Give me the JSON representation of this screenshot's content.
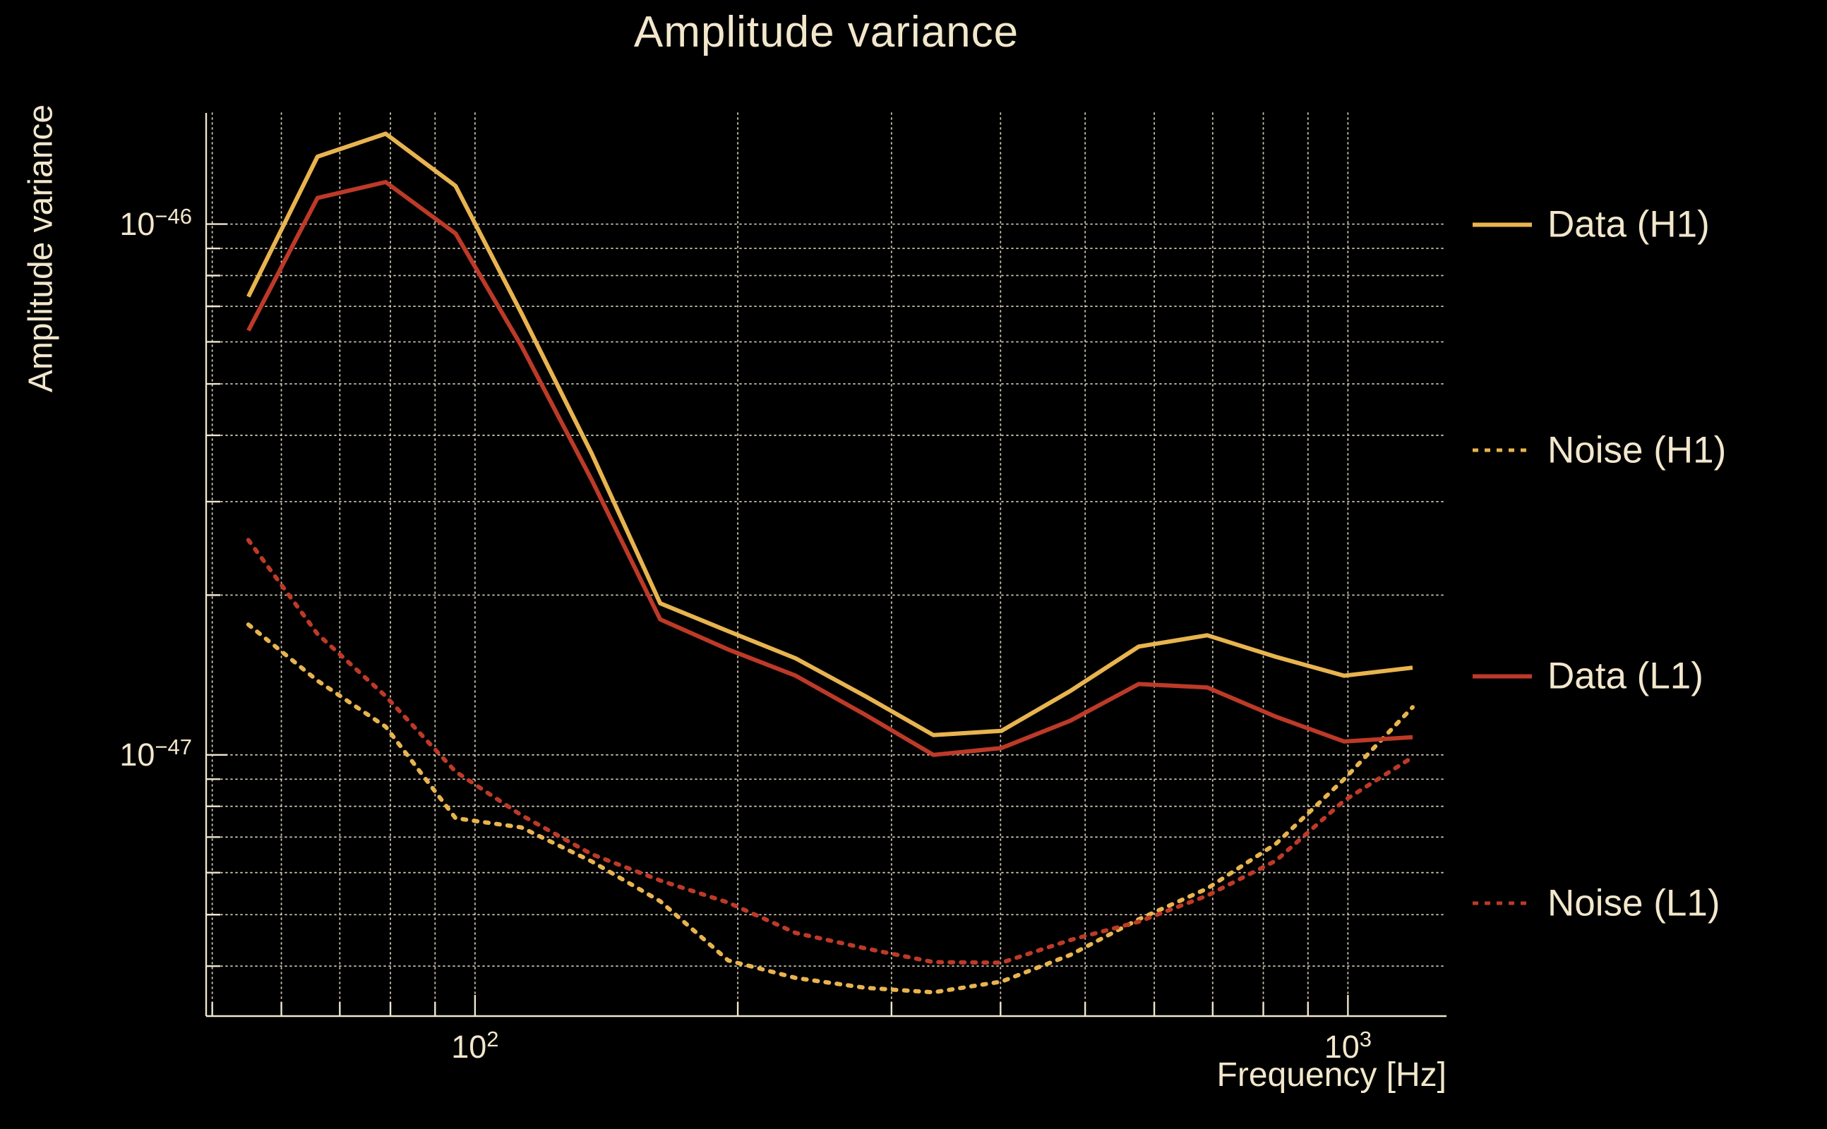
{
  "title": "Amplitude variance",
  "y_axis_label": "Amplitude variance",
  "x_axis_label": "Frequency [Hz]",
  "colors": {
    "background": "#000000",
    "text": "#F2E7CC",
    "grid": "#F0E6CD",
    "spine": "#F0E6CD",
    "h1_gold": "#E8B44F",
    "l1_red": "#BD3A28"
  },
  "chart_data": {
    "type": "line",
    "title": "Amplitude variance",
    "xlabel": "Frequency [Hz]",
    "ylabel": "Amplitude variance",
    "x_scale": "log",
    "y_scale": "log",
    "grid": "major+minor, dotted",
    "legend_position": "right, outside",
    "xlim": [
      49.2,
      1297
    ],
    "ylim": [
      3.22e-48,
      1.62e-46
    ],
    "x": [
      55,
      66,
      79,
      95,
      113,
      136,
      163,
      195,
      233,
      280,
      335,
      401,
      481,
      576,
      690,
      827,
      990,
      1186
    ],
    "series": [
      {
        "name": "Data (H1)",
        "style": "solid",
        "color": "#E8B44F",
        "values": [
          7.3e-47,
          1.34e-46,
          1.48e-46,
          1.18e-46,
          6.8e-47,
          3.7e-47,
          1.93e-47,
          1.71e-47,
          1.52e-47,
          1.29e-47,
          1.09e-47,
          1.11e-47,
          1.32e-47,
          1.6e-47,
          1.68e-47,
          1.53e-47,
          1.41e-47,
          1.46e-47
        ]
      },
      {
        "name": "Noise (H1)",
        "style": "dotted",
        "color": "#E8B44F",
        "values": [
          1.76e-47,
          1.38e-47,
          1.13e-47,
          7.6e-48,
          7.3e-48,
          6.3e-48,
          5.3e-48,
          4.1e-48,
          3.8e-48,
          3.64e-48,
          3.57e-48,
          3.74e-48,
          4.2e-48,
          4.9e-48,
          5.6e-48,
          6.8e-48,
          9e-48,
          1.23e-47
        ]
      },
      {
        "name": "Data (L1)",
        "style": "solid",
        "color": "#BD3A28",
        "values": [
          6.3e-47,
          1.12e-46,
          1.2e-46,
          9.6e-47,
          5.9e-47,
          3.3e-47,
          1.8e-47,
          1.58e-47,
          1.41e-47,
          1.19e-47,
          1e-47,
          1.03e-47,
          1.16e-47,
          1.36e-47,
          1.34e-47,
          1.18e-47,
          1.06e-47,
          1.08e-47
        ]
      },
      {
        "name": "Noise (L1)",
        "style": "dotted",
        "color": "#BD3A28",
        "values": [
          2.54e-47,
          1.69e-47,
          1.29e-47,
          9.3e-48,
          7.7e-48,
          6.5e-48,
          5.8e-48,
          5.27e-48,
          4.62e-48,
          4.32e-48,
          4.07e-48,
          4.06e-48,
          4.48e-48,
          4.85e-48,
          5.43e-48,
          6.32e-48,
          8.2e-48,
          9.9e-48
        ]
      }
    ],
    "x_major_ticks": [
      {
        "value": 100,
        "base": "10",
        "exp": "2"
      },
      {
        "value": 1000,
        "base": "10",
        "exp": "3"
      }
    ],
    "x_minor_ticks": [
      50,
      60,
      70,
      80,
      90,
      200,
      300,
      400,
      500,
      600,
      700,
      800,
      900
    ],
    "y_major_ticks": [
      {
        "value": 1e-46,
        "base": "10",
        "exp": "−46"
      },
      {
        "value": 1e-47,
        "base": "10",
        "exp": "−47"
      }
    ],
    "y_minor_ticks": [
      9e-47,
      8e-47,
      7e-47,
      6e-47,
      5e-47,
      4e-47,
      3e-47,
      2e-47,
      9e-48,
      8e-48,
      7e-48,
      6e-48,
      5e-48,
      4e-48
    ]
  }
}
